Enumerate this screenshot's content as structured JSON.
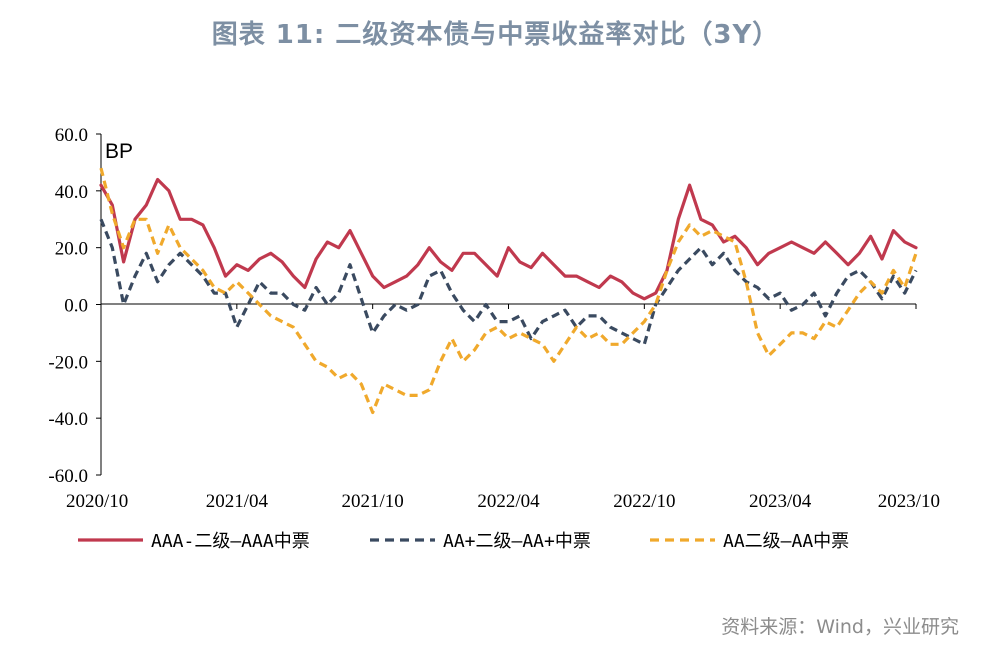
{
  "header": {
    "title": "图表 11: 二级资本债与中票收益率对比（3Y）"
  },
  "footer": {
    "source": "资料来源：Wind，兴业研究"
  },
  "chart_data": {
    "type": "line",
    "title": "图表 11: 二级资本债与中票收益率对比（3Y）",
    "unit_label": "BP",
    "xlabel": "",
    "ylabel": "",
    "ylim": [
      -60,
      60
    ],
    "yticks": [
      60,
      40,
      20,
      0,
      -20,
      -40,
      -60
    ],
    "ytick_labels": [
      "60.0",
      "40.0",
      "20.0",
      "0.0",
      "-20.0",
      "-40.0",
      "-60.0"
    ],
    "x_range": [
      "2020/10",
      "2023/10"
    ],
    "x_tick_labels": [
      "2020/10",
      "2021/04",
      "2021/10",
      "2022/04",
      "2022/10",
      "2023/04",
      "2023/10"
    ],
    "x_tick_positions": [
      0,
      6,
      12,
      18,
      24,
      30,
      36
    ],
    "legend": "bottom",
    "grid": false,
    "x": [
      0,
      0.5,
      1,
      1.5,
      2,
      2.5,
      3,
      3.5,
      4,
      4.5,
      5,
      5.5,
      6,
      6.5,
      7,
      7.5,
      8,
      8.5,
      9,
      9.5,
      10,
      10.5,
      11,
      11.5,
      12,
      12.5,
      13,
      13.5,
      14,
      14.5,
      15,
      15.5,
      16,
      16.5,
      17,
      17.5,
      18,
      18.5,
      19,
      19.5,
      20,
      20.5,
      21,
      21.5,
      22,
      22.5,
      23,
      23.5,
      24,
      24.5,
      25,
      25.5,
      26,
      26.5,
      27,
      27.5,
      28,
      28.5,
      29,
      29.5,
      30,
      30.5,
      31,
      31.5,
      32,
      32.5,
      33,
      33.5,
      34,
      34.5,
      35,
      35.5,
      36
    ],
    "series": [
      {
        "name": "AAA-二级—AAA中票",
        "color": "#c0394e",
        "style": "solid",
        "values": [
          42,
          35,
          15,
          30,
          35,
          44,
          40,
          30,
          30,
          28,
          20,
          10,
          14,
          12,
          16,
          18,
          15,
          10,
          6,
          16,
          22,
          20,
          26,
          18,
          10,
          6,
          8,
          10,
          14,
          20,
          15,
          12,
          18,
          18,
          14,
          10,
          20,
          15,
          13,
          18,
          14,
          10,
          10,
          8,
          6,
          10,
          8,
          4,
          2,
          4,
          12,
          30,
          42,
          30,
          28,
          22,
          24,
          20,
          14,
          18,
          20,
          22,
          20,
          18,
          22,
          18,
          14,
          18,
          24,
          16,
          26,
          22,
          20
        ]
      },
      {
        "name": "AA+二级—AA+中票",
        "color": "#3a4a60",
        "style": "dash",
        "values": [
          30,
          20,
          0,
          10,
          18,
          8,
          14,
          18,
          14,
          10,
          4,
          4,
          -8,
          0,
          8,
          4,
          4,
          0,
          -2,
          6,
          0,
          4,
          14,
          2,
          -10,
          -4,
          0,
          -2,
          0,
          10,
          12,
          4,
          -2,
          -6,
          0,
          -6,
          -6,
          -4,
          -12,
          -6,
          -4,
          -2,
          -8,
          -4,
          -4,
          -8,
          -10,
          -12,
          -14,
          0,
          6,
          12,
          16,
          20,
          14,
          18,
          12,
          8,
          6,
          2,
          4,
          -2,
          0,
          4,
          -4,
          4,
          10,
          12,
          8,
          2,
          10,
          4,
          12
        ]
      },
      {
        "name": "AA二级—AA中票",
        "color": "#f0a92c",
        "style": "dash",
        "values": [
          48,
          32,
          20,
          30,
          30,
          18,
          28,
          20,
          16,
          12,
          6,
          4,
          8,
          4,
          0,
          -4,
          -6,
          -8,
          -14,
          -20,
          -22,
          -26,
          -24,
          -28,
          -38,
          -28,
          -30,
          -32,
          -32,
          -30,
          -20,
          -12,
          -20,
          -16,
          -10,
          -8,
          -12,
          -10,
          -12,
          -14,
          -20,
          -14,
          -8,
          -12,
          -10,
          -14,
          -14,
          -10,
          -6,
          0,
          12,
          22,
          28,
          24,
          26,
          24,
          22,
          8,
          -10,
          -18,
          -14,
          -10,
          -10,
          -12,
          -6,
          -8,
          -2,
          4,
          8,
          4,
          12,
          6,
          18
        ]
      }
    ]
  }
}
